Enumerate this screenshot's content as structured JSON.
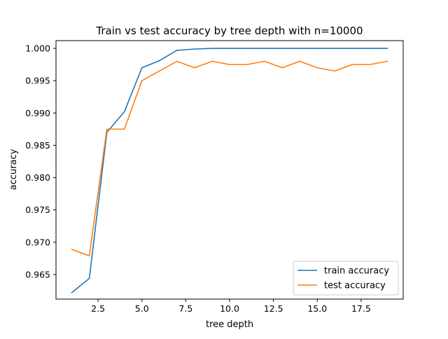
{
  "chart_data": {
    "type": "line",
    "title": "Train vs test accuracy by tree depth with n=10000",
    "xlabel": "tree depth",
    "ylabel": "accuracy",
    "xlim": [
      0.1,
      19.9
    ],
    "ylim": [
      0.9612,
      1.0012
    ],
    "xticks": [
      2.5,
      5.0,
      7.5,
      10.0,
      12.5,
      15.0,
      17.5
    ],
    "xtick_labels": [
      "2.5",
      "5.0",
      "7.5",
      "10.0",
      "12.5",
      "15.0",
      "17.5"
    ],
    "yticks": [
      0.965,
      0.97,
      0.975,
      0.98,
      0.985,
      0.99,
      0.995,
      1.0
    ],
    "ytick_labels": [
      "0.965",
      "0.970",
      "0.975",
      "0.980",
      "0.985",
      "0.990",
      "0.995",
      "1.000"
    ],
    "grid": false,
    "legend_position": "lower-right",
    "x": [
      1,
      2,
      3,
      4,
      5,
      6,
      7,
      8,
      9,
      10,
      11,
      12,
      13,
      14,
      15,
      16,
      17,
      18,
      19
    ],
    "series": [
      {
        "name": "train accuracy",
        "color": "#1f77b4",
        "values": [
          0.9622,
          0.9644,
          0.987,
          0.9902,
          0.997,
          0.9981,
          0.9997,
          0.9999,
          1.0,
          1.0,
          1.0,
          1.0,
          1.0,
          1.0,
          1.0,
          1.0,
          1.0,
          1.0,
          1.0
        ]
      },
      {
        "name": "test accuracy",
        "color": "#ff7f0e",
        "values": [
          0.9689,
          0.9679,
          0.9875,
          0.9875,
          0.995,
          0.9965,
          0.998,
          0.997,
          0.998,
          0.9975,
          0.9975,
          0.998,
          0.997,
          0.998,
          0.997,
          0.9965,
          0.9975,
          0.9975,
          0.998
        ]
      }
    ]
  }
}
